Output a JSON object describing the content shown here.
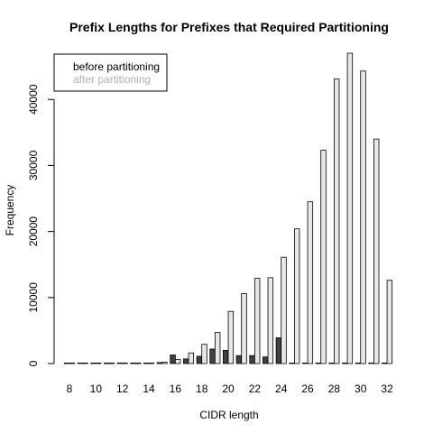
{
  "chart_data": {
    "type": "bar",
    "title": "Prefix Lengths for Prefixes that Required Partitioning",
    "xlabel": "CIDR length",
    "ylabel": "Frequency",
    "categories": [
      "8",
      "9",
      "10",
      "11",
      "12",
      "13",
      "14",
      "15",
      "16",
      "17",
      "18",
      "19",
      "20",
      "21",
      "22",
      "23",
      "24",
      "25",
      "26",
      "27",
      "28",
      "29",
      "30",
      "31",
      "32"
    ],
    "x_tick_labels": [
      "8",
      "10",
      "12",
      "14",
      "16",
      "18",
      "20",
      "22",
      "24",
      "26",
      "28",
      "30",
      "32"
    ],
    "y_ticks": [
      0,
      10000,
      20000,
      30000,
      40000
    ],
    "ylim": [
      0,
      47000
    ],
    "legend": {
      "placement": "top-left"
    },
    "series": [
      {
        "name": "before partitioning",
        "color": "#404040",
        "values": [
          0,
          0,
          0,
          0,
          0,
          0,
          0,
          150,
          1300,
          700,
          1100,
          2200,
          2000,
          1200,
          1200,
          1000,
          3900,
          50,
          50,
          50,
          50,
          50,
          30,
          20,
          20
        ]
      },
      {
        "name": "after partitioning",
        "color": "#e8e8e8",
        "values": [
          0,
          0,
          0,
          0,
          0,
          0,
          0,
          200,
          600,
          1600,
          2900,
          4700,
          7900,
          10600,
          12900,
          13000,
          16100,
          20400,
          24500,
          32300,
          43100,
          47000,
          44300,
          34000,
          12600
        ]
      }
    ]
  }
}
